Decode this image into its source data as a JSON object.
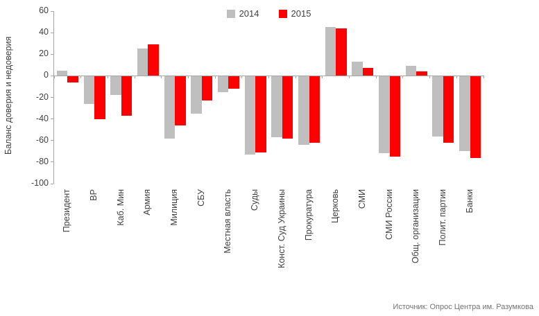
{
  "chart_data": {
    "type": "bar",
    "title": "",
    "ylabel": "Баланс доверия и недоверия",
    "xlabel": "",
    "ylim": [
      -100,
      60
    ],
    "yticks": [
      60,
      40,
      20,
      0,
      -20,
      -40,
      -60,
      -80,
      -100
    ],
    "grid": false,
    "legend_position": "top-center",
    "categories": [
      "Президент",
      "ВР",
      "Каб. Мин",
      "Армия",
      "Милиция",
      "СБУ",
      "Местная власть",
      "Суды",
      "Конст. Суд Украины",
      "Прокуратура",
      "Церковь",
      "СМИ",
      "СМИ России",
      "Общ. организации",
      "Полит. партии",
      "Банки"
    ],
    "series": [
      {
        "name": "2014",
        "color": "#BFBFBF",
        "values": [
          5,
          -26,
          -18,
          25,
          -58,
          -35,
          -15,
          -73,
          -57,
          -64,
          45,
          13,
          -72,
          9,
          -56,
          -70
        ]
      },
      {
        "name": "2015",
        "color": "#FF0000",
        "values": [
          -6,
          -40,
          -37,
          29,
          -46,
          -23,
          -12,
          -71,
          -58,
          -62,
          44,
          7,
          -75,
          4,
          -62,
          -76
        ]
      }
    ],
    "colors": {
      "axis": "#A6A6A6",
      "text": "#404040",
      "source_text": "#737373"
    },
    "source": "Источник: Опрос Центра им. Разумкова"
  }
}
